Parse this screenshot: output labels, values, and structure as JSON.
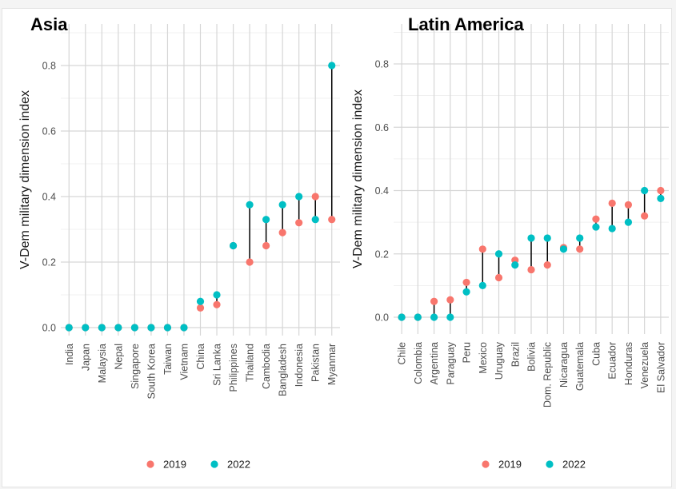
{
  "chart_data": [
    {
      "type": "dumbbell",
      "title": "Asia",
      "ylabel": "V-Dem military dimension index",
      "ylim": [
        0,
        0.9
      ],
      "yticks": [
        "0.0",
        "0.2",
        "0.4",
        "0.6",
        "0.8"
      ],
      "grid": true,
      "legend": "bottom",
      "categories": [
        "India",
        "Japan",
        "Malaysia",
        "Nepal",
        "Singapore",
        "South Korea",
        "Taiwan",
        "Vietnam",
        "China",
        "Sri Lanka",
        "Philippines",
        "Thailand",
        "Cambodia",
        "Bangladesh",
        "Indonesia",
        "Pakistan",
        "Myanmar"
      ],
      "series": [
        {
          "name": "2019",
          "color": "#F8766D",
          "values": [
            0,
            0,
            0,
            0,
            0,
            0,
            0,
            0,
            0.06,
            0.07,
            0.25,
            0.2,
            0.25,
            0.29,
            0.32,
            0.4,
            0.33
          ]
        },
        {
          "name": "2022",
          "color": "#00BFC4",
          "values": [
            0,
            0,
            0,
            0,
            0,
            0,
            0,
            0,
            0.08,
            0.1,
            0.25,
            0.375,
            0.33,
            0.375,
            0.4,
            0.33,
            0.8
          ]
        }
      ]
    },
    {
      "type": "dumbbell",
      "title": "Latin America",
      "ylabel": "V-Dem military dimension index",
      "ylim": [
        0,
        0.9
      ],
      "yticks": [
        "0.0",
        "0.2",
        "0.4",
        "0.6",
        "0.8"
      ],
      "grid": true,
      "legend": "bottom",
      "categories": [
        "Chile",
        "Colombia",
        "Argentina",
        "Paraguay",
        "Peru",
        "Mexico",
        "Uruguay",
        "Brazil",
        "Bolivia",
        "Dom. Republic",
        "Nicaragua",
        "Guatemala",
        "Cuba",
        "Ecuador",
        "Honduras",
        "Venezuela",
        "El Salvador"
      ],
      "series": [
        {
          "name": "2019",
          "color": "#F8766D",
          "values": [
            0,
            0,
            0.05,
            0.055,
            0.11,
            0.215,
            0.125,
            0.18,
            0.15,
            0.165,
            0.22,
            0.215,
            0.31,
            0.36,
            0.355,
            0.32,
            0.4
          ]
        },
        {
          "name": "2022",
          "color": "#00BFC4",
          "values": [
            0,
            0,
            0,
            0,
            0.08,
            0.1,
            0.2,
            0.165,
            0.25,
            0.25,
            0.215,
            0.25,
            0.285,
            0.28,
            0.3,
            0.4,
            0.375
          ]
        }
      ]
    }
  ]
}
